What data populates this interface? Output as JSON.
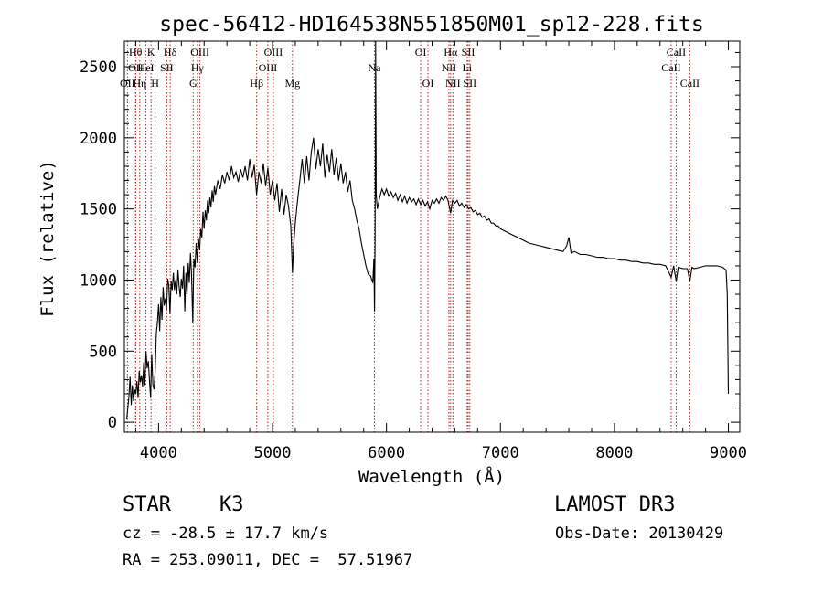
{
  "chart_data": {
    "type": "line",
    "title": "spec-56412-HD164538N551850M01_sp12-228.fits",
    "xlabel": "Wavelength (Å)",
    "ylabel": "Flux (relative)",
    "xlim": [
      3700,
      9100
    ],
    "ylim": [
      -70,
      2680
    ],
    "x_ticks": [
      4000,
      5000,
      6000,
      7000,
      8000,
      9000
    ],
    "y_ticks": [
      0,
      500,
      1000,
      1500,
      2000,
      2500
    ],
    "grid": false,
    "series": [
      {
        "values": [
          [
            3720,
            20
          ],
          [
            3740,
            180
          ],
          [
            3750,
            320
          ],
          [
            3760,
            120
          ],
          [
            3770,
            260
          ],
          [
            3780,
            150
          ],
          [
            3790,
            230
          ],
          [
            3800,
            200
          ],
          [
            3810,
            290
          ],
          [
            3820,
            170
          ],
          [
            3830,
            360
          ],
          [
            3840,
            280
          ],
          [
            3850,
            330
          ],
          [
            3860,
            250
          ],
          [
            3870,
            420
          ],
          [
            3880,
            260
          ],
          [
            3890,
            500
          ],
          [
            3900,
            380
          ],
          [
            3910,
            430
          ],
          [
            3920,
            300
          ],
          [
            3930,
            170
          ],
          [
            3940,
            480
          ],
          [
            3950,
            260
          ],
          [
            3960,
            230
          ],
          [
            3970,
            360
          ],
          [
            3980,
            620
          ],
          [
            3990,
            700
          ],
          [
            4000,
            830
          ],
          [
            4010,
            640
          ],
          [
            4020,
            880
          ],
          [
            4030,
            720
          ],
          [
            4040,
            950
          ],
          [
            4050,
            820
          ],
          [
            4060,
            870
          ],
          [
            4070,
            790
          ],
          [
            4080,
            1010
          ],
          [
            4090,
            960
          ],
          [
            4100,
            760
          ],
          [
            4110,
            990
          ],
          [
            4120,
            930
          ],
          [
            4130,
            1050
          ],
          [
            4140,
            930
          ],
          [
            4150,
            1000
          ],
          [
            4160,
            900
          ],
          [
            4170,
            1070
          ],
          [
            4180,
            960
          ],
          [
            4190,
            880
          ],
          [
            4200,
            1010
          ],
          [
            4210,
            940
          ],
          [
            4220,
            1100
          ],
          [
            4230,
            780
          ],
          [
            4240,
            1050
          ],
          [
            4250,
            900
          ],
          [
            4260,
            1120
          ],
          [
            4270,
            980
          ],
          [
            4280,
            1190
          ],
          [
            4290,
            1030
          ],
          [
            4300,
            700
          ],
          [
            4310,
            1150
          ],
          [
            4320,
            1090
          ],
          [
            4330,
            1260
          ],
          [
            4340,
            1120
          ],
          [
            4350,
            1290
          ],
          [
            4360,
            1210
          ],
          [
            4370,
            1360
          ],
          [
            4380,
            1300
          ],
          [
            4390,
            1480
          ],
          [
            4400,
            1360
          ],
          [
            4410,
            1490
          ],
          [
            4420,
            1420
          ],
          [
            4430,
            1560
          ],
          [
            4440,
            1470
          ],
          [
            4450,
            1580
          ],
          [
            4460,
            1510
          ],
          [
            4470,
            1630
          ],
          [
            4480,
            1550
          ],
          [
            4490,
            1660
          ],
          [
            4500,
            1600
          ],
          [
            4520,
            1700
          ],
          [
            4540,
            1640
          ],
          [
            4560,
            1740
          ],
          [
            4580,
            1680
          ],
          [
            4600,
            1760
          ],
          [
            4620,
            1700
          ],
          [
            4640,
            1800
          ],
          [
            4660,
            1720
          ],
          [
            4680,
            1760
          ],
          [
            4700,
            1690
          ],
          [
            4720,
            1780
          ],
          [
            4740,
            1720
          ],
          [
            4760,
            1800
          ],
          [
            4780,
            1700
          ],
          [
            4800,
            1850
          ],
          [
            4820,
            1720
          ],
          [
            4840,
            1810
          ],
          [
            4860,
            1600
          ],
          [
            4880,
            1760
          ],
          [
            4900,
            1680
          ],
          [
            4920,
            1820
          ],
          [
            4940,
            1660
          ],
          [
            4960,
            1790
          ],
          [
            4980,
            1600
          ],
          [
            5000,
            1700
          ],
          [
            5020,
            1560
          ],
          [
            5040,
            1680
          ],
          [
            5060,
            1480
          ],
          [
            5080,
            1640
          ],
          [
            5100,
            1460
          ],
          [
            5120,
            1600
          ],
          [
            5140,
            1520
          ],
          [
            5160,
            1380
          ],
          [
            5175,
            1050
          ],
          [
            5185,
            1240
          ],
          [
            5200,
            1400
          ],
          [
            5220,
            1560
          ],
          [
            5240,
            1700
          ],
          [
            5260,
            1850
          ],
          [
            5280,
            1680
          ],
          [
            5300,
            1870
          ],
          [
            5320,
            1700
          ],
          [
            5340,
            1900
          ],
          [
            5360,
            2000
          ],
          [
            5380,
            1780
          ],
          [
            5400,
            1920
          ],
          [
            5420,
            1800
          ],
          [
            5440,
            1960
          ],
          [
            5460,
            1720
          ],
          [
            5480,
            1880
          ],
          [
            5500,
            1760
          ],
          [
            5520,
            1920
          ],
          [
            5540,
            1740
          ],
          [
            5560,
            1860
          ],
          [
            5580,
            1700
          ],
          [
            5600,
            1820
          ],
          [
            5620,
            1680
          ],
          [
            5640,
            1760
          ],
          [
            5660,
            1620
          ],
          [
            5680,
            1700
          ],
          [
            5700,
            1560
          ],
          [
            5720,
            1500
          ],
          [
            5740,
            1420
          ],
          [
            5760,
            1360
          ],
          [
            5780,
            1260
          ],
          [
            5800,
            1180
          ],
          [
            5820,
            1100
          ],
          [
            5840,
            1040
          ],
          [
            5860,
            1030
          ],
          [
            5880,
            980
          ],
          [
            5890,
            1150
          ],
          [
            5895,
            780
          ],
          [
            5900,
            1300
          ],
          [
            5905,
            2680
          ],
          [
            5910,
            1600
          ],
          [
            5920,
            1500
          ],
          [
            5940,
            1580
          ],
          [
            5960,
            1640
          ],
          [
            5980,
            1600
          ],
          [
            6000,
            1640
          ],
          [
            6020,
            1590
          ],
          [
            6040,
            1620
          ],
          [
            6060,
            1580
          ],
          [
            6080,
            1610
          ],
          [
            6100,
            1560
          ],
          [
            6120,
            1600
          ],
          [
            6140,
            1550
          ],
          [
            6160,
            1590
          ],
          [
            6180,
            1540
          ],
          [
            6200,
            1580
          ],
          [
            6220,
            1550
          ],
          [
            6240,
            1570
          ],
          [
            6260,
            1530
          ],
          [
            6280,
            1570
          ],
          [
            6300,
            1530
          ],
          [
            6320,
            1560
          ],
          [
            6340,
            1520
          ],
          [
            6360,
            1550
          ],
          [
            6380,
            1500
          ],
          [
            6400,
            1560
          ],
          [
            6420,
            1540
          ],
          [
            6440,
            1570
          ],
          [
            6460,
            1540
          ],
          [
            6480,
            1580
          ],
          [
            6500,
            1560
          ],
          [
            6520,
            1590
          ],
          [
            6540,
            1560
          ],
          [
            6563,
            1470
          ],
          [
            6580,
            1560
          ],
          [
            6600,
            1540
          ],
          [
            6620,
            1560
          ],
          [
            6640,
            1520
          ],
          [
            6660,
            1540
          ],
          [
            6680,
            1510
          ],
          [
            6700,
            1530
          ],
          [
            6720,
            1500
          ],
          [
            6740,
            1510
          ],
          [
            6760,
            1480
          ],
          [
            6780,
            1490
          ],
          [
            6800,
            1460
          ],
          [
            6820,
            1470
          ],
          [
            6840,
            1440
          ],
          [
            6860,
            1450
          ],
          [
            6880,
            1420
          ],
          [
            6900,
            1430
          ],
          [
            6920,
            1400
          ],
          [
            6940,
            1400
          ],
          [
            6960,
            1380
          ],
          [
            6980,
            1380
          ],
          [
            7000,
            1360
          ],
          [
            7050,
            1340
          ],
          [
            7100,
            1320
          ],
          [
            7150,
            1300
          ],
          [
            7200,
            1280
          ],
          [
            7250,
            1260
          ],
          [
            7300,
            1250
          ],
          [
            7350,
            1240
          ],
          [
            7400,
            1230
          ],
          [
            7450,
            1220
          ],
          [
            7500,
            1210
          ],
          [
            7550,
            1200
          ],
          [
            7580,
            1240
          ],
          [
            7600,
            1300
          ],
          [
            7620,
            1190
          ],
          [
            7650,
            1200
          ],
          [
            7700,
            1180
          ],
          [
            7750,
            1180
          ],
          [
            7800,
            1170
          ],
          [
            7850,
            1160
          ],
          [
            7900,
            1160
          ],
          [
            7950,
            1150
          ],
          [
            8000,
            1150
          ],
          [
            8050,
            1140
          ],
          [
            8100,
            1140
          ],
          [
            8150,
            1130
          ],
          [
            8200,
            1130
          ],
          [
            8250,
            1120
          ],
          [
            8300,
            1120
          ],
          [
            8350,
            1110
          ],
          [
            8400,
            1110
          ],
          [
            8450,
            1100
          ],
          [
            8498,
            1020
          ],
          [
            8520,
            1100
          ],
          [
            8542,
            990
          ],
          [
            8560,
            1090
          ],
          [
            8600,
            1080
          ],
          [
            8640,
            1080
          ],
          [
            8662,
            990
          ],
          [
            8680,
            1090
          ],
          [
            8700,
            1080
          ],
          [
            8750,
            1090
          ],
          [
            8800,
            1100
          ],
          [
            8850,
            1100
          ],
          [
            8900,
            1100
          ],
          [
            8950,
            1090
          ],
          [
            8980,
            1070
          ],
          [
            8990,
            900
          ],
          [
            9000,
            200
          ]
        ]
      }
    ],
    "lines": [
      {
        "label": "OII",
        "x": 3727,
        "row": 2
      },
      {
        "label": "Hθ",
        "x": 3798,
        "row": 0
      },
      {
        "label": "OII",
        "x": 3800,
        "row": 1
      },
      {
        "label": "Hη",
        "x": 3835,
        "row": 2
      },
      {
        "label": "HeI",
        "x": 3889,
        "row": 1
      },
      {
        "label": "K",
        "x": 3934,
        "row": 0
      },
      {
        "label": "H",
        "x": 3969,
        "row": 2
      },
      {
        "label": "SII",
        "x": 4072,
        "row": 1
      },
      {
        "label": "Hδ",
        "x": 4102,
        "row": 0
      },
      {
        "label": "G",
        "x": 4304,
        "row": 2
      },
      {
        "label": "Hγ",
        "x": 4341,
        "row": 1
      },
      {
        "label": "OIII",
        "x": 4363,
        "row": 0
      },
      {
        "label": "Hβ",
        "x": 4861,
        "row": 2
      },
      {
        "label": "OIII",
        "x": 4959,
        "row": 1
      },
      {
        "label": "OIII",
        "x": 5007,
        "row": 0
      },
      {
        "label": "Mg",
        "x": 5175,
        "row": 2
      },
      {
        "label": "Na",
        "x": 5894,
        "row": 1
      },
      {
        "label": "OI",
        "x": 6300,
        "row": 0
      },
      {
        "label": "OI",
        "x": 6364,
        "row": 2
      },
      {
        "label": "NII",
        "x": 6548,
        "row": 1
      },
      {
        "label": "Hα",
        "x": 6563,
        "row": 0
      },
      {
        "label": "NII",
        "x": 6583,
        "row": 2
      },
      {
        "label": "SII",
        "x": 6717,
        "row": 0
      },
      {
        "label": "Li",
        "x": 6708,
        "row": 1
      },
      {
        "label": "SII",
        "x": 6731,
        "row": 2
      },
      {
        "label": "CaII",
        "x": 8498,
        "row": 1
      },
      {
        "label": "CaII",
        "x": 8542,
        "row": 0
      },
      {
        "label": "CaII",
        "x": 8662,
        "row": 2
      }
    ]
  },
  "info": {
    "class": "STAR",
    "subclass": "K3",
    "survey": "LAMOST DR3",
    "cz": "cz = -28.5 ± 17.7 km/s",
    "obs_date": "Obs-Date: 20130429",
    "coords": "RA = 253.09011, DEC =  57.51967"
  }
}
